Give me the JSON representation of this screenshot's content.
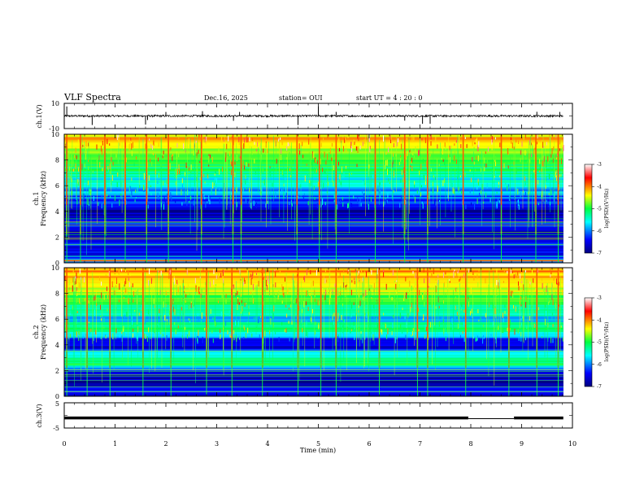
{
  "header": {
    "title": "VLF Spectra",
    "date": "Dec.16, 2025",
    "station": "station= OUI",
    "start": "start  UT =   4 : 20 : 0"
  },
  "colors": {
    "plot_bg": "#00007a",
    "waveform": "#000000"
  },
  "chart_data": [
    {
      "type": "line",
      "name": "ch1-waveform",
      "ylabel": "ch.1(V)",
      "y_tick_labels": [
        "10",
        "-10"
      ],
      "ylim": [
        -10,
        10
      ],
      "xlim": [
        0,
        10
      ],
      "data_end_min": 9.82,
      "baseline": 0,
      "spike_times_min": [
        0.05,
        0.55,
        1.6,
        1.64,
        2.0,
        2.72,
        3.33,
        3.45,
        4.6,
        5.0,
        5.35,
        6.7,
        7.05,
        7.2,
        9.3,
        9.75
      ]
    },
    {
      "type": "heatmap",
      "name": "ch1-spectrogram",
      "ylabel_top": "ch.1",
      "ylabel": "Frequency (kHz)",
      "y_tick_labels": [
        "0",
        "2",
        "4",
        "6",
        "8",
        "10"
      ],
      "ylim_khz": [
        0,
        10
      ],
      "xlim_min": [
        0,
        10
      ],
      "data_end_min": 9.82,
      "colorbar": {
        "label": "log(PSD)(V²/Hz)",
        "ticks": [
          "-3",
          "-4",
          "-5",
          "-6",
          "-7"
        ],
        "range": [
          -7,
          -3
        ]
      },
      "band_profile": [
        {
          "f_khz": 0.0,
          "log_psd": -6.9
        },
        {
          "f_khz": 0.15,
          "log_psd": -4.0
        },
        {
          "f_khz": 0.3,
          "log_psd": -6.0
        },
        {
          "f_khz": 0.8,
          "log_psd": -6.6
        },
        {
          "f_khz": 1.5,
          "log_psd": -6.3
        },
        {
          "f_khz": 2.2,
          "log_psd": -6.8
        },
        {
          "f_khz": 3.0,
          "log_psd": -6.2
        },
        {
          "f_khz": 4.0,
          "log_psd": -6.9
        },
        {
          "f_khz": 4.8,
          "log_psd": -6.3
        },
        {
          "f_khz": 5.3,
          "log_psd": -6.0
        },
        {
          "f_khz": 6.0,
          "log_psd": -5.7
        },
        {
          "f_khz": 7.0,
          "log_psd": -5.3
        },
        {
          "f_khz": 8.0,
          "log_psd": -4.8
        },
        {
          "f_khz": 9.0,
          "log_psd": -4.4
        },
        {
          "f_khz": 10.0,
          "log_psd": -4.2
        }
      ],
      "sferic_times_min": [
        0.05,
        0.32,
        0.8,
        1.2,
        1.62,
        2.05,
        2.7,
        3.32,
        3.48,
        4.58,
        5.02,
        5.35,
        6.12,
        6.7,
        7.15,
        7.85,
        8.6,
        9.28,
        9.72
      ]
    },
    {
      "type": "heatmap",
      "name": "ch2-spectrogram",
      "ylabel_top": "ch.2",
      "ylabel": "Frequency (kHz)",
      "y_tick_labels": [
        "0",
        "2",
        "4",
        "6",
        "8",
        "10"
      ],
      "ylim_khz": [
        0,
        10
      ],
      "xlim_min": [
        0,
        10
      ],
      "data_end_min": 9.82,
      "colorbar": {
        "label": "log(PSD)(V²/Hz)",
        "ticks": [
          "-3",
          "-4",
          "-5",
          "-6",
          "-7"
        ],
        "range": [
          -7,
          -3
        ]
      },
      "band_profile": [
        {
          "f_khz": 0.0,
          "log_psd": -6.9
        },
        {
          "f_khz": 0.3,
          "log_psd": -6.2
        },
        {
          "f_khz": 1.0,
          "log_psd": -6.8
        },
        {
          "f_khz": 1.9,
          "log_psd": -6.5
        },
        {
          "f_khz": 2.5,
          "log_psd": -4.9
        },
        {
          "f_khz": 3.2,
          "log_psd": -5.3
        },
        {
          "f_khz": 3.8,
          "log_psd": -6.6
        },
        {
          "f_khz": 4.5,
          "log_psd": -6.2
        },
        {
          "f_khz": 5.3,
          "log_psd": -5.0
        },
        {
          "f_khz": 6.0,
          "log_psd": -5.8
        },
        {
          "f_khz": 7.0,
          "log_psd": -5.1
        },
        {
          "f_khz": 8.0,
          "log_psd": -4.7
        },
        {
          "f_khz": 9.0,
          "log_psd": -4.3
        },
        {
          "f_khz": 10.0,
          "log_psd": -4.1
        }
      ],
      "sferic_times_min": [
        0.05,
        0.45,
        0.9,
        1.55,
        2.1,
        2.8,
        3.3,
        3.9,
        4.6,
        5.05,
        5.35,
        6.2,
        6.95,
        7.15,
        7.9,
        8.75,
        9.3,
        9.72
      ]
    },
    {
      "type": "line",
      "name": "ch3-waveform",
      "ylabel": "ch.3(V)",
      "y_tick_labels": [
        "5",
        "-5"
      ],
      "ylim": [
        -5,
        5
      ],
      "xlim": [
        0,
        10
      ],
      "segments": [
        {
          "t0": 0.0,
          "t1": 7.95,
          "value": -1.0
        },
        {
          "t0": 7.95,
          "t1": 8.85,
          "value": -1.3
        },
        {
          "t0": 8.85,
          "t1": 9.82,
          "value": -1.0
        }
      ],
      "xlabel": "Time (min)",
      "x_tick_labels": [
        "0",
        "1",
        "2",
        "3",
        "4",
        "5",
        "6",
        "7",
        "8",
        "9",
        "10"
      ]
    }
  ]
}
